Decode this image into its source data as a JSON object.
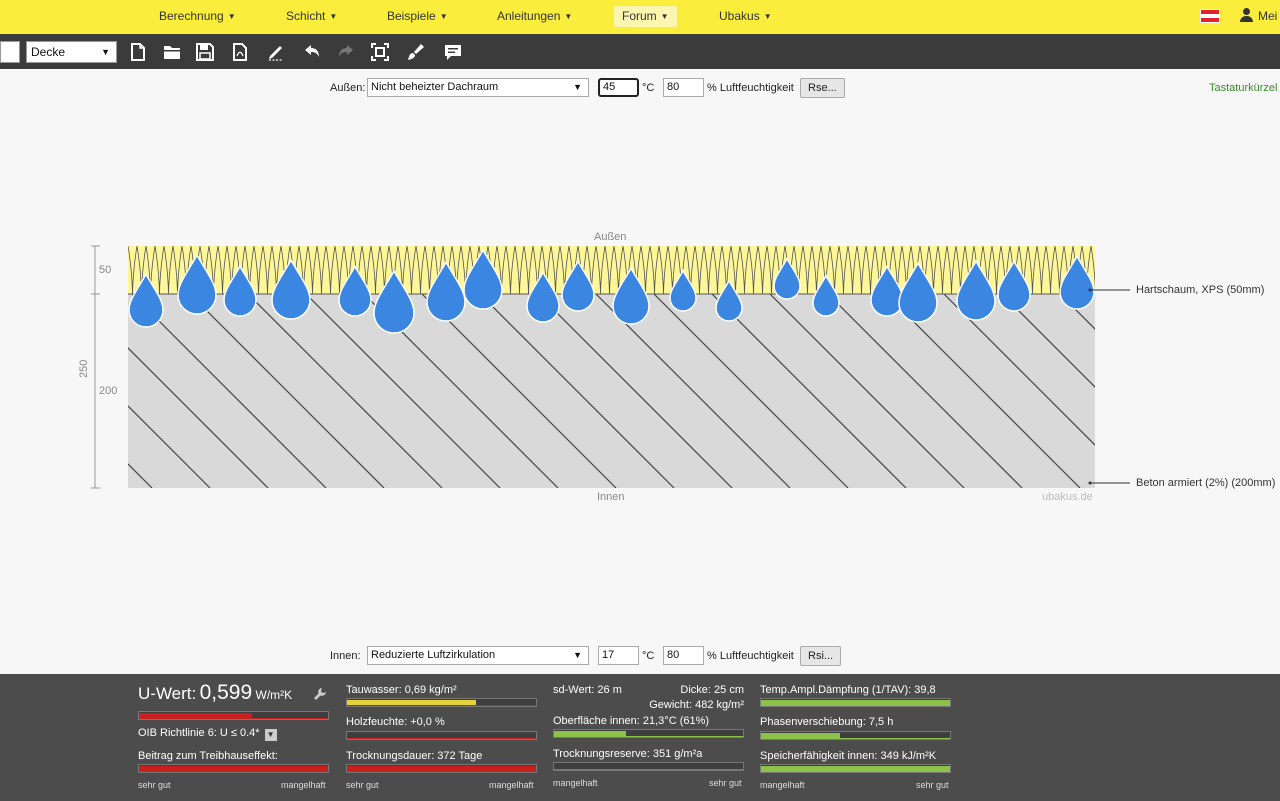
{
  "menu": {
    "items": [
      {
        "label": "Berechnung",
        "active": false
      },
      {
        "label": "Schicht",
        "active": false
      },
      {
        "label": "Beispiele",
        "active": false
      },
      {
        "label": "Anleitungen",
        "active": false
      },
      {
        "label": "Forum",
        "active": true
      },
      {
        "label": "Ubakus",
        "active": false
      }
    ],
    "caret": "▼",
    "user_label": "Mei"
  },
  "toolbar": {
    "type_select": "Decke",
    "arrow": "▼",
    "icons": [
      "new-file-icon",
      "open-folder-icon",
      "save-icon",
      "pdf-icon",
      "edit-icon",
      "undo-icon",
      "redo-icon",
      "fit-view-icon",
      "paint-icon",
      "comment-icon"
    ]
  },
  "outside": {
    "label": "Außen:",
    "location": "Nicht beheizter Dachraum",
    "temperature": "45",
    "temp_unit": "°C",
    "humidity": "80",
    "humidity_unit": "% Luftfeuchtigkeit",
    "button": "Rse..."
  },
  "inside": {
    "label": "Innen:",
    "location": "Reduzierte Luftzirkulation",
    "temperature": "17",
    "temp_unit": "°C",
    "humidity": "80",
    "humidity_unit": "% Luftfeuchtigkeit",
    "button": "Rsi..."
  },
  "shortcuts_link": "Tastaturkürzel a",
  "diagram": {
    "top_label": "Außen",
    "bottom_label": "Innen",
    "watermark": "ubakus.de",
    "dim_total": "250",
    "dim_layers": [
      "50",
      "200"
    ],
    "layers": [
      {
        "name": "Hartschaum, XPS (50mm)"
      },
      {
        "name": "Beton armiert (2%) (200mm)"
      }
    ],
    "colors": {
      "insulation": "#fdf79a",
      "concrete": "#d9d9d9",
      "droplet": "#3a86e0"
    }
  },
  "results": {
    "uwert_label": "U-Wert:",
    "uwert_value": "0,599",
    "uwert_unit": "W/m²K",
    "uwert_fill": 0.6,
    "oib": "OIB Richtlinie 6: U ≤ 0.4*",
    "oib_arrow": "▼",
    "treibhaus": "Beitrag zum Treibhauseffekt:",
    "treibhaus_fill": 1.0,
    "tauwasser": "Tauwasser: 0,69 kg/m²",
    "tauwasser_fill": 0.68,
    "holzfeuchte": "Holzfeuchte: +0,0 %",
    "holzfeuchte_fill": 0.0,
    "trocknungsdauer": "Trocknungsdauer: 372 Tage",
    "trocknungsdauer_fill": 1.0,
    "sd_wert": "sd-Wert: 26 m",
    "dicke": "Dicke: 25 cm",
    "gewicht": "Gewicht: 482 kg/m²",
    "oberflaeche": "Oberfläche innen: 21,3°C (61%)",
    "oberflaeche_fill": 0.38,
    "trocknungsreserve": "Trocknungsreserve: 351 g/m²a",
    "trocknungsreserve_fill": 0.0,
    "temp_ampl": "Temp.Ampl.Dämpfung (1/TAV): 39,8",
    "temp_ampl_fill": 1.0,
    "phasen": "Phasenverschiebung: 7,5 h",
    "phasen_fill": 0.42,
    "speicher": "Speicherfähigkeit innen: 349 kJ/m²K",
    "speicher_fill": 1.0,
    "scale_good": "sehr gut",
    "scale_bad": "mangelhaft"
  }
}
